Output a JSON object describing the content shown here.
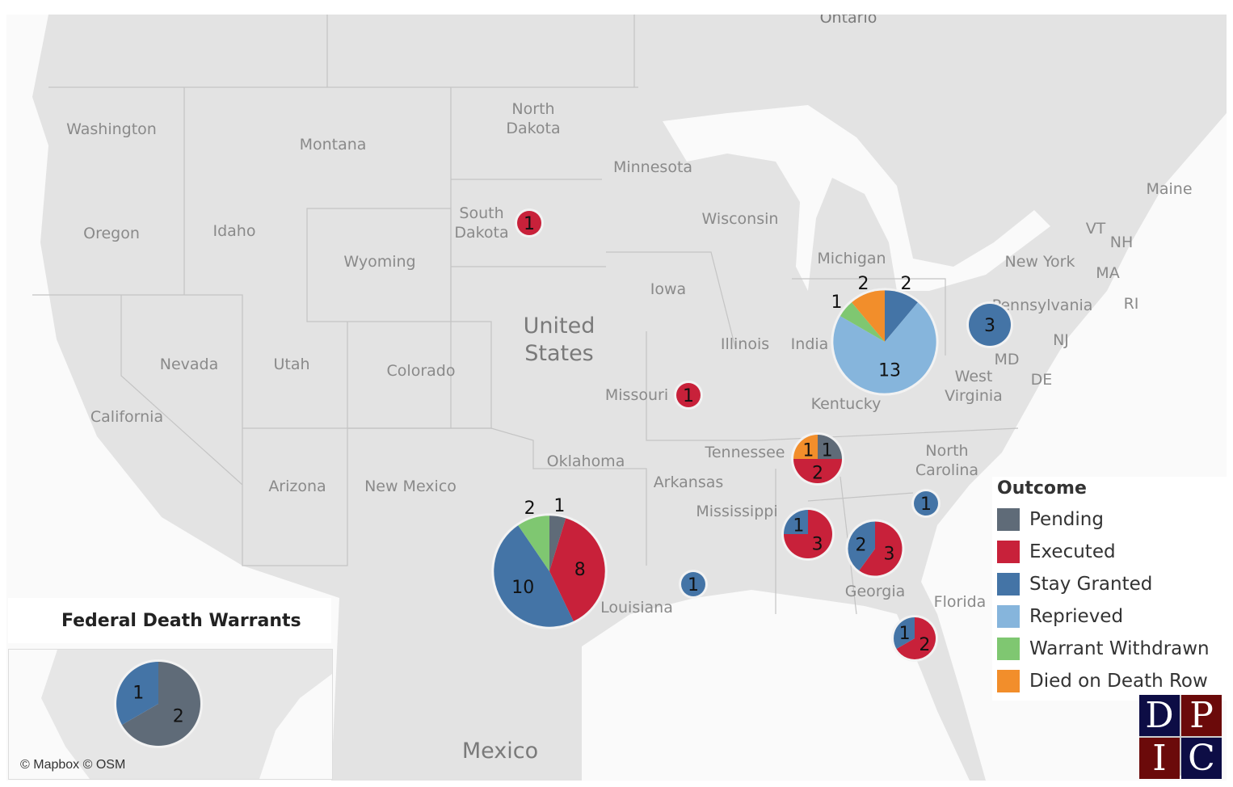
{
  "title": "Federal Death Warrants",
  "attribution": "© Mapbox © OSM",
  "legend": {
    "title": "Outcome",
    "items": [
      {
        "key": "pending",
        "label": "Pending",
        "color": "#5f6b78"
      },
      {
        "key": "executed",
        "label": "Executed",
        "color": "#c8213a"
      },
      {
        "key": "stay",
        "label": "Stay Granted",
        "color": "#4474a6"
      },
      {
        "key": "reprieved",
        "label": "Reprieved",
        "color": "#86b5dc"
      },
      {
        "key": "withdrawn",
        "label": "Warrant Withdrawn",
        "color": "#7fc771"
      },
      {
        "key": "died",
        "label": "Died on Death Row",
        "color": "#f28e2b"
      }
    ]
  },
  "map_labels": {
    "countries": [
      "United States",
      "Mexico",
      "Ontario"
    ],
    "states": [
      "Washington",
      "Montana",
      "North Dakota",
      "Minnesota",
      "Oregon",
      "Idaho",
      "South Dakota",
      "Wyoming",
      "Wisconsin",
      "Michigan",
      "New York",
      "Maine",
      "VT",
      "NH",
      "MA",
      "RI",
      "Iowa",
      "Illinois",
      "India",
      "Pennsylvania",
      "NJ",
      "MD",
      "DE",
      "Nevada",
      "Utah",
      "Colorado",
      "Missouri",
      "West Virginia",
      "Kentucky",
      "California",
      "Tennessee",
      "North Carolina",
      "Oklahoma",
      "Arkansas",
      "Arizona",
      "New Mexico",
      "Mississippi",
      "Louisiana",
      "Georgia",
      "Florida"
    ]
  },
  "chart_data": {
    "type": "pie-map",
    "categories": [
      "Pending",
      "Executed",
      "Stay Granted",
      "Reprieved",
      "Warrant Withdrawn",
      "Died on Death Row"
    ],
    "locations": [
      {
        "name": "South Dakota",
        "values": {
          "executed": 1
        }
      },
      {
        "name": "Missouri",
        "values": {
          "executed": 1
        }
      },
      {
        "name": "Pennsylvania",
        "values": {
          "stay": 3
        }
      },
      {
        "name": "Indiana/Ohio",
        "values": {
          "stay": 2,
          "reprieved": 13,
          "withdrawn": 1,
          "died": 2
        }
      },
      {
        "name": "Tennessee",
        "values": {
          "pending": 1,
          "executed": 2,
          "died": 1
        }
      },
      {
        "name": "Texas",
        "values": {
          "pending": 1,
          "executed": 8,
          "stay": 10,
          "withdrawn": 2
        }
      },
      {
        "name": "Alabama",
        "values": {
          "executed": 3,
          "stay": 1
        }
      },
      {
        "name": "Georgia",
        "values": {
          "executed": 3,
          "stay": 2
        }
      },
      {
        "name": "Florida",
        "values": {
          "executed": 2,
          "stay": 1
        }
      },
      {
        "name": "South Carolina",
        "values": {
          "stay": 1
        }
      },
      {
        "name": "Louisiana",
        "values": {
          "stay": 1
        }
      },
      {
        "name": "Federal",
        "values": {
          "pending": 2,
          "stay": 1
        }
      }
    ]
  },
  "logo": {
    "letters": [
      "D",
      "P",
      "I",
      "C"
    ]
  }
}
